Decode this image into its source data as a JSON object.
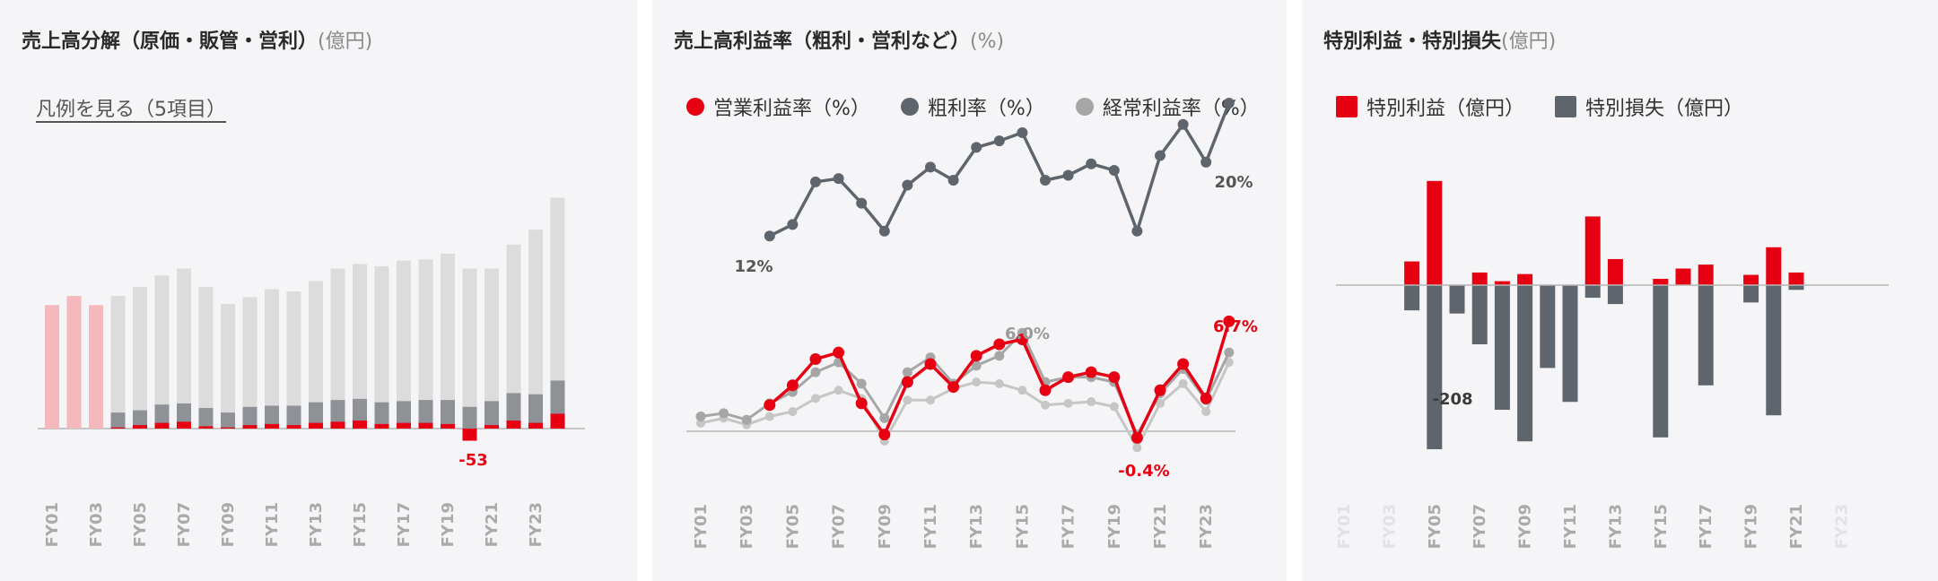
{
  "colors": {
    "red": "#e60012",
    "pink": "#f4b8bd",
    "gray_dark": "#5f656c",
    "gray_mid": "#8e9196",
    "gray_light": "#dcdcdc",
    "gray_line": "#a6a6a6",
    "axis": "#b5b5b5"
  },
  "panels": [
    {
      "title": "売上高分解（原価・販管・営利）",
      "unit": "(億円)",
      "legend_link": "凡例を見る（5項目）"
    },
    {
      "title": "売上高利益率（粗利・営利など）",
      "unit": "(%)",
      "legend": [
        {
          "label": "営業利益率（%）",
          "icon": "red-dot-icon",
          "color": "#e60012"
        },
        {
          "label": "粗利率（%）",
          "icon": "dark-gray-dot-icon",
          "color": "#5f656c"
        },
        {
          "label": "経常利益率（%）",
          "icon": "light-gray-dot-icon",
          "color": "#a6a6a6"
        }
      ]
    },
    {
      "title": "特別利益・特別損失",
      "unit": "(億円)",
      "legend": [
        {
          "label": "特別利益（億円）",
          "icon": "red-square-icon",
          "color": "#e60012"
        },
        {
          "label": "特別損失（億円）",
          "icon": "gray-square-icon",
          "color": "#5f656c"
        }
      ]
    }
  ],
  "chart_data": [
    {
      "type": "bar",
      "title": "売上高分解（原価・販管・営利）",
      "unit": "億円",
      "categories": [
        "FY01",
        "FY02",
        "FY03",
        "FY04",
        "FY05",
        "FY06",
        "FY07",
        "FY08",
        "FY09",
        "FY10",
        "FY11",
        "FY12",
        "FY13",
        "FY14",
        "FY15",
        "FY16",
        "FY17",
        "FY18",
        "FY19",
        "FY20",
        "FY21",
        "FY22",
        "FY23",
        "FY24"
      ],
      "tick_labels": [
        "FY01",
        "FY03",
        "FY05",
        "FY07",
        "FY09",
        "FY11",
        "FY13",
        "FY15",
        "FY17",
        "FY19",
        "FY21",
        "FY23"
      ],
      "ylim": [
        -120,
        1000
      ],
      "series": [
        {
          "role": "sales_only",
          "values": [
            540,
            580,
            540,
            null,
            null,
            null,
            null,
            null,
            null,
            null,
            null,
            null,
            null,
            null,
            null,
            null,
            null,
            null,
            null,
            null,
            null,
            null,
            null,
            null
          ]
        },
        {
          "role": "sales_total",
          "values": [
            null,
            null,
            null,
            580,
            620,
            670,
            700,
            620,
            545,
            575,
            610,
            600,
            645,
            700,
            720,
            710,
            735,
            740,
            765,
            700,
            700,
            805,
            870,
            1010
          ]
        },
        {
          "role": "mid_segment",
          "values": [
            null,
            null,
            null,
            70,
            80,
            105,
            110,
            90,
            70,
            95,
            100,
            100,
            115,
            125,
            130,
            115,
            120,
            125,
            125,
            95,
            120,
            155,
            150,
            210
          ]
        },
        {
          "role": "operating_profit",
          "values": [
            null,
            null,
            null,
            5,
            15,
            25,
            30,
            10,
            5,
            15,
            20,
            15,
            25,
            30,
            35,
            20,
            25,
            25,
            20,
            -53,
            15,
            35,
            25,
            65
          ]
        }
      ],
      "annotations": [
        {
          "text": "-53"
        }
      ]
    },
    {
      "type": "line",
      "title": "売上高利益率（粗利・営利など）",
      "unit": "%",
      "x": [
        "FY01",
        "FY02",
        "FY03",
        "FY04",
        "FY05",
        "FY06",
        "FY07",
        "FY08",
        "FY09",
        "FY10",
        "FY11",
        "FY12",
        "FY13",
        "FY14",
        "FY15",
        "FY16",
        "FY17",
        "FY18",
        "FY19",
        "FY20",
        "FY21",
        "FY22",
        "FY23",
        "FY24"
      ],
      "tick_labels": [
        "FY01",
        "FY03",
        "FY05",
        "FY07",
        "FY09",
        "FY11",
        "FY13",
        "FY15",
        "FY17",
        "FY19",
        "FY21",
        "FY23"
      ],
      "ylim": [
        -2,
        22
      ],
      "series": [
        {
          "name": "営業利益率（%）",
          "color": "#e60012",
          "values": [
            null,
            null,
            null,
            1.6,
            2.8,
            4.4,
            4.8,
            1.7,
            -0.2,
            3.0,
            4.1,
            2.7,
            4.6,
            5.3,
            5.6,
            2.5,
            3.3,
            3.6,
            3.3,
            -0.4,
            2.5,
            4.1,
            2.0,
            6.7
          ]
        },
        {
          "name": "粗利率（%）",
          "color": "#5f656c",
          "values": [
            null,
            null,
            null,
            11.9,
            12.6,
            15.2,
            15.4,
            13.9,
            12.2,
            15.0,
            16.1,
            15.3,
            17.3,
            17.7,
            18.2,
            15.3,
            15.6,
            16.3,
            15.9,
            12.2,
            16.8,
            18.7,
            16.4,
            20.0
          ]
        },
        {
          "name": "経常利益率（%）",
          "color": "#a6a6a6",
          "values": [
            0.9,
            1.1,
            0.7,
            1.7,
            2.4,
            3.6,
            4.2,
            2.9,
            0.8,
            3.6,
            4.5,
            2.9,
            4.0,
            4.6,
            6.0,
            3.0,
            3.3,
            3.3,
            3.0,
            -0.2,
            2.3,
            3.8,
            1.9,
            4.8
          ]
        },
        {
          "color": "#c6c6c6",
          "values": [
            0.5,
            0.8,
            0.4,
            0.9,
            1.2,
            2.0,
            2.5,
            2.0,
            -0.6,
            1.9,
            1.9,
            2.6,
            3.0,
            2.9,
            2.5,
            1.6,
            1.7,
            1.8,
            1.5,
            -1.0,
            1.7,
            2.9,
            1.2,
            4.2
          ]
        }
      ],
      "annotations": [
        {
          "text": "12%"
        },
        {
          "text": "20%"
        },
        {
          "text": "6.0%"
        },
        {
          "text": "6.7%"
        },
        {
          "text": "-0.4%"
        }
      ]
    },
    {
      "type": "bar",
      "title": "特別利益・特別損失",
      "unit": "億円",
      "categories": [
        "FY01",
        "FY02",
        "FY03",
        "FY04",
        "FY05",
        "FY06",
        "FY07",
        "FY08",
        "FY09",
        "FY10",
        "FY11",
        "FY12",
        "FY13",
        "FY14",
        "FY15",
        "FY16",
        "FY17",
        "FY18",
        "FY19",
        "FY20",
        "FY21",
        "FY22",
        "FY23"
      ],
      "tick_labels": [
        "FY01",
        "FY03",
        "FY05",
        "FY07",
        "FY09",
        "FY11",
        "FY13",
        "FY15",
        "FY17",
        "FY19",
        "FY21",
        "FY23"
      ],
      "faded_ticks": [
        "FY01",
        "FY03",
        "FY23"
      ],
      "ylim": [
        -220,
        150
      ],
      "series": [
        {
          "name": "特別利益（億円）",
          "color": "#e60012",
          "values": [
            null,
            null,
            null,
            30,
            132,
            null,
            16,
            5,
            14,
            null,
            null,
            87,
            33,
            null,
            8,
            21,
            26,
            null,
            13,
            48,
            16,
            null,
            null
          ]
        },
        {
          "name": "特別損失（億円）",
          "color": "#5f656c",
          "values": [
            null,
            null,
            null,
            -32,
            -208,
            -36,
            -75,
            -158,
            -198,
            -105,
            -148,
            -16,
            -24,
            null,
            -193,
            null,
            -127,
            null,
            -22,
            -165,
            -6,
            null,
            null
          ]
        }
      ],
      "annotations": [
        {
          "text": "-208"
        }
      ]
    }
  ]
}
